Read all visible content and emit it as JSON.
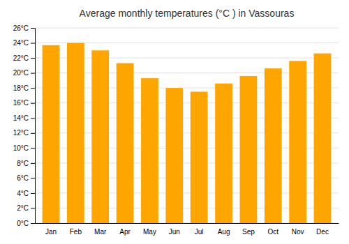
{
  "chart_data": {
    "type": "bar",
    "title": "Average monthly temperatures (°C ) in Vassouras",
    "categories": [
      "Jan",
      "Feb",
      "Mar",
      "Apr",
      "May",
      "Jun",
      "Jul",
      "Aug",
      "Sep",
      "Oct",
      "Nov",
      "Dec"
    ],
    "values": [
      23.7,
      24.0,
      23.0,
      21.3,
      19.3,
      18.0,
      17.5,
      18.6,
      19.6,
      20.6,
      21.6,
      22.6
    ],
    "color": "#FFA500",
    "ylim": [
      0,
      26
    ],
    "yticks": [
      {
        "value": 0,
        "label": "0°C"
      },
      {
        "value": 2,
        "label": "2°C"
      },
      {
        "value": 4,
        "label": "4°C"
      },
      {
        "value": 6,
        "label": "6°C"
      },
      {
        "value": 8,
        "label": "8°C"
      },
      {
        "value": 10,
        "label": "10°C"
      },
      {
        "value": 12,
        "label": "12°C"
      },
      {
        "value": 14,
        "label": "14°C"
      },
      {
        "value": 16,
        "label": "16°C"
      },
      {
        "value": 18,
        "label": "18°C"
      },
      {
        "value": 20,
        "label": "20°C"
      },
      {
        "value": 22,
        "label": "22°C"
      },
      {
        "value": 24,
        "label": "24°C"
      },
      {
        "value": 26,
        "label": "26°C"
      }
    ],
    "grid": true
  }
}
